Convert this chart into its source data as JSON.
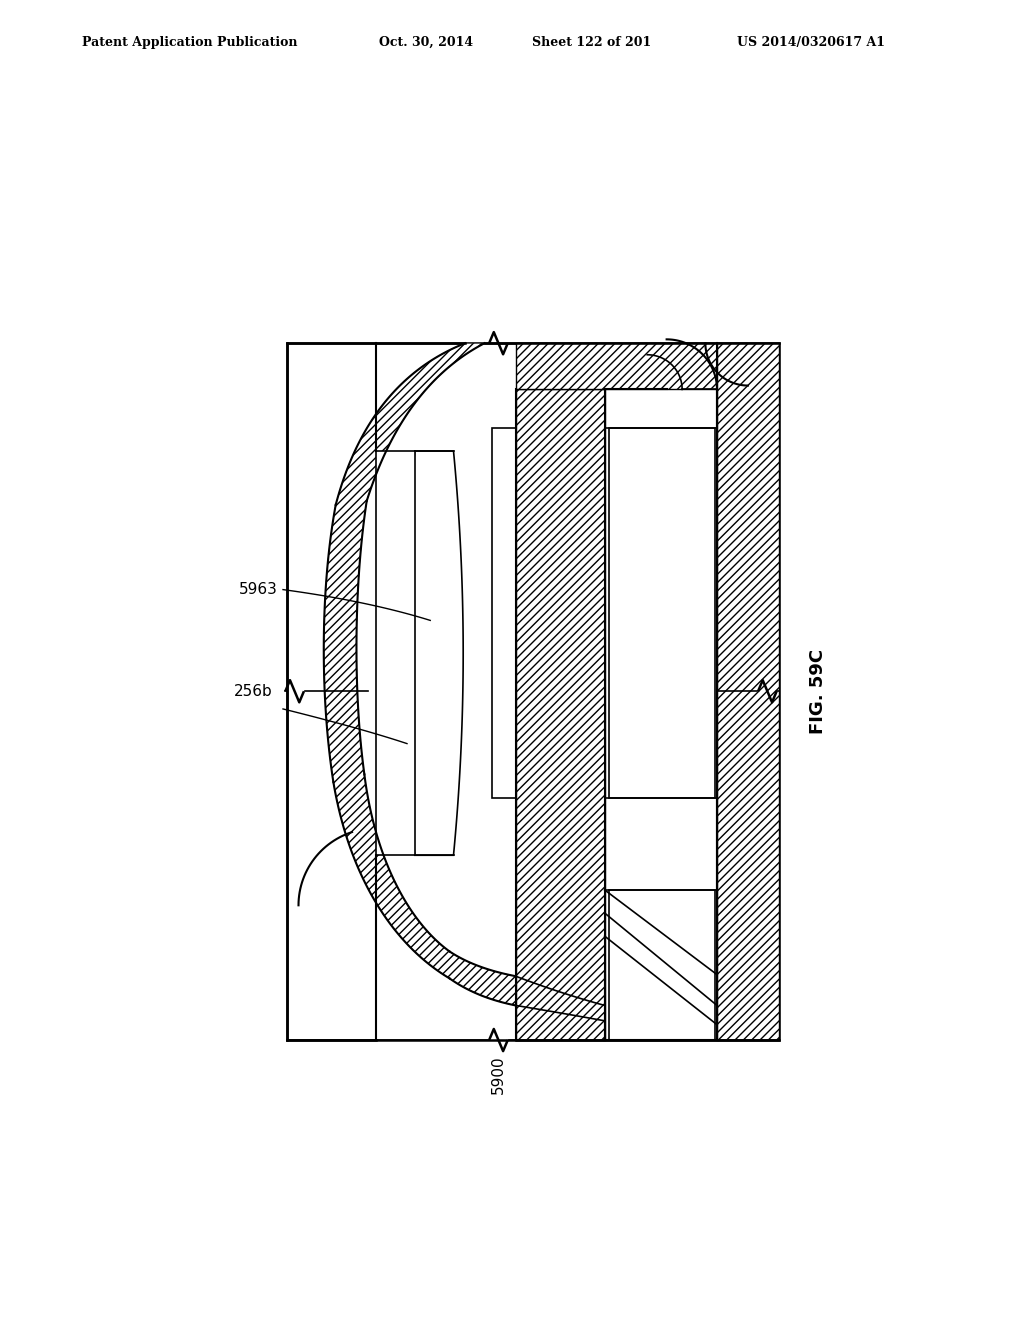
{
  "background_color": "#ffffff",
  "header_text": "Patent Application Publication",
  "header_date": "Oct. 30, 2014",
  "header_sheet": "Sheet 122 of 201",
  "header_patent": "US 2014/0320617 A1",
  "fig_label": "FIG. 59C",
  "label_5963": "5963",
  "label_256b": "256b",
  "label_5900": "5900",
  "line_color": "#000000"
}
